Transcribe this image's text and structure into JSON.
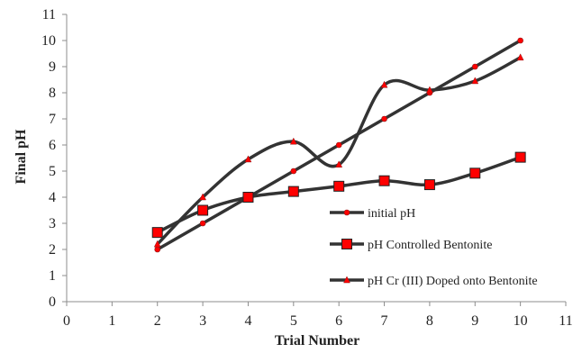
{
  "chart_data": {
    "type": "line",
    "title": "",
    "xlabel": "Trial Number",
    "ylabel": "Final pH",
    "xlim": [
      0,
      11
    ],
    "ylim": [
      0,
      11
    ],
    "xticks": [
      0,
      1,
      2,
      3,
      4,
      5,
      6,
      7,
      8,
      9,
      10,
      11
    ],
    "yticks": [
      0,
      1,
      2,
      3,
      4,
      5,
      6,
      7,
      8,
      9,
      10,
      11
    ],
    "grid": false,
    "legend_position": "bottom-right",
    "line_color": "#333333",
    "marker_color": "#ff0000",
    "series": [
      {
        "name": "initial pH",
        "marker": "circle",
        "smooth": false,
        "x": [
          2,
          3,
          4,
          5,
          6,
          7,
          8,
          9,
          10
        ],
        "y": [
          2,
          3,
          4,
          5,
          6,
          7,
          8,
          9,
          10
        ]
      },
      {
        "name": "pH Controlled Bentonite",
        "marker": "square",
        "smooth": true,
        "x": [
          2,
          3,
          4,
          5,
          6,
          7,
          8,
          9,
          10
        ],
        "y": [
          2.65,
          3.5,
          4.0,
          4.22,
          4.42,
          4.63,
          4.48,
          4.92,
          5.53
        ]
      },
      {
        "name": "pH Cr (III) Doped onto Bentonite",
        "marker": "triangle",
        "smooth": true,
        "x": [
          2,
          3,
          4,
          5,
          6,
          7,
          8,
          9,
          10
        ],
        "y": [
          2.2,
          4.0,
          5.45,
          6.13,
          5.25,
          8.3,
          8.1,
          8.45,
          9.35
        ]
      }
    ]
  }
}
